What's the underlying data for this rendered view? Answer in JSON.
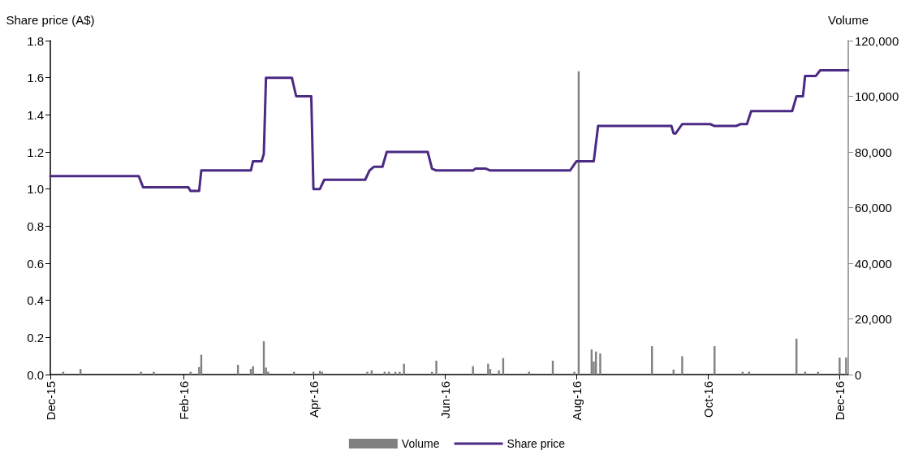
{
  "chart_data": {
    "type": "line",
    "ylabel": "Share price (A$)",
    "y2label": "Volume",
    "xlim": [
      "2015-12-01",
      "2016-12-05"
    ],
    "xticks": [
      {
        "value": "2015-12-01",
        "label": "Dec-15"
      },
      {
        "value": "2016-02-01",
        "label": "Feb-16"
      },
      {
        "value": "2016-04-01",
        "label": "Apr-16"
      },
      {
        "value": "2016-06-01",
        "label": "Jun-16"
      },
      {
        "value": "2016-08-01",
        "label": "Aug-16"
      },
      {
        "value": "2016-10-01",
        "label": "Oct-16"
      },
      {
        "value": "2016-12-01",
        "label": "Dec-16"
      }
    ],
    "ylim": [
      0,
      1.8
    ],
    "yticks": [
      {
        "value": 0,
        "label": "0.0"
      },
      {
        "value": 0.2,
        "label": "0.2"
      },
      {
        "value": 0.4,
        "label": "0.4"
      },
      {
        "value": 0.6,
        "label": "0.6"
      },
      {
        "value": 0.8,
        "label": "0.8"
      },
      {
        "value": 1,
        "label": "1.0"
      },
      {
        "value": 1.2,
        "label": "1.2"
      },
      {
        "value": 1.4,
        "label": "1.4"
      },
      {
        "value": 1.6,
        "label": "1.6"
      },
      {
        "value": 1.8,
        "label": "1.8"
      }
    ],
    "y2lim": [
      0,
      120000
    ],
    "y2ticks": [
      0,
      {
        "value": 20000,
        "label": "20,000"
      },
      {
        "value": 40000,
        "label": "40,000"
      },
      {
        "value": 60000,
        "label": "60,000"
      },
      {
        "value": 80000,
        "label": "80,000"
      },
      {
        "value": 100000,
        "label": "100,000"
      },
      {
        "value": 120000,
        "label": "120,000"
      }
    ],
    "grid": false,
    "legend": "bottom",
    "marker": "none",
    "line_style": "solid",
    "series": [
      {
        "name": "Volume",
        "type": "bar",
        "axis": "y2",
        "color": "#808080",
        "x": [
          "2015-12-07",
          "2015-12-15",
          "2016-01-12",
          "2016-01-18",
          "2016-02-04",
          "2016-02-08",
          "2016-02-09",
          "2016-02-26",
          "2016-03-03",
          "2016-03-04",
          "2016-03-09",
          "2016-03-10",
          "2016-03-11",
          "2016-03-23",
          "2016-04-01",
          "2016-04-04",
          "2016-04-05",
          "2016-04-26",
          "2016-04-28",
          "2016-05-04",
          "2016-05-06",
          "2016-05-09",
          "2016-05-11",
          "2016-05-13",
          "2016-05-26",
          "2016-05-28",
          "2016-06-14",
          "2016-06-21",
          "2016-06-22",
          "2016-06-26",
          "2016-06-28",
          "2016-07-10",
          "2016-07-21",
          "2016-07-31",
          "2016-08-02",
          "2016-08-08",
          "2016-08-09",
          "2016-08-10",
          "2016-08-12",
          "2016-09-05",
          "2016-09-15",
          "2016-09-19",
          "2016-10-04",
          "2016-10-17",
          "2016-10-20",
          "2016-11-11",
          "2016-11-15",
          "2016-11-21",
          "2016-12-01",
          "2016-12-04"
        ],
        "values": [
          1000,
          2000,
          1000,
          1000,
          1000,
          2700,
          7100,
          3500,
          2000,
          3000,
          12000,
          2500,
          1000,
          1000,
          1000,
          1300,
          1000,
          1000,
          1500,
          1000,
          1000,
          1000,
          1000,
          3900,
          1000,
          5000,
          3000,
          3900,
          2000,
          1500,
          5900,
          1000,
          5000,
          1000,
          109000,
          9000,
          4700,
          8300,
          7600,
          10200,
          1800,
          6600,
          10200,
          1000,
          1000,
          12900,
          1000,
          1000,
          6100,
          6100
        ]
      },
      {
        "name": "Share price",
        "color": "#4b2a84",
        "x": [
          "2015-12-01",
          "2016-01-11",
          "2016-01-13",
          "2016-02-03",
          "2016-02-04",
          "2016-02-08",
          "2016-02-09",
          "2016-03-03",
          "2016-03-04",
          "2016-03-08",
          "2016-03-09",
          "2016-03-10",
          "2016-03-22",
          "2016-03-24",
          "2016-03-31",
          "2016-04-01",
          "2016-04-04",
          "2016-04-06",
          "2016-04-25",
          "2016-04-27",
          "2016-04-29",
          "2016-05-03",
          "2016-05-05",
          "2016-05-24",
          "2016-05-26",
          "2016-05-28",
          "2016-06-14",
          "2016-06-15",
          "2016-06-20",
          "2016-06-22",
          "2016-07-29",
          "2016-08-01",
          "2016-08-09",
          "2016-08-11",
          "2016-09-14",
          "2016-09-15",
          "2016-09-16",
          "2016-09-19",
          "2016-10-02",
          "2016-10-04",
          "2016-10-14",
          "2016-10-16",
          "2016-10-19",
          "2016-10-21",
          "2016-11-09",
          "2016-11-11",
          "2016-11-14",
          "2016-11-15",
          "2016-11-20",
          "2016-11-22",
          "2016-12-05"
        ],
        "values": [
          1.07,
          1.07,
          1.01,
          1.01,
          0.99,
          0.99,
          1.1,
          1.1,
          1.15,
          1.15,
          1.19,
          1.6,
          1.6,
          1.5,
          1.5,
          1.0,
          1.0,
          1.05,
          1.05,
          1.1,
          1.12,
          1.12,
          1.2,
          1.2,
          1.11,
          1.1,
          1.1,
          1.11,
          1.11,
          1.1,
          1.1,
          1.15,
          1.15,
          1.34,
          1.34,
          1.3,
          1.3,
          1.35,
          1.35,
          1.34,
          1.34,
          1.35,
          1.35,
          1.42,
          1.42,
          1.5,
          1.5,
          1.61,
          1.61,
          1.64,
          1.64
        ]
      }
    ]
  }
}
